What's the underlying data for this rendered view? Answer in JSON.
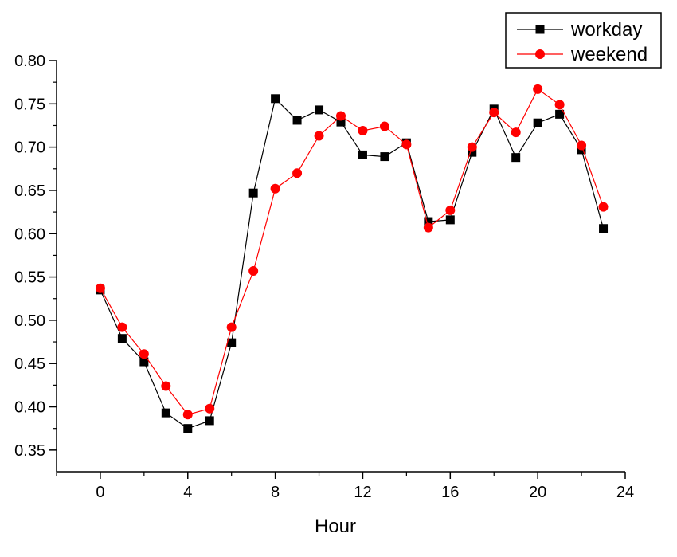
{
  "chart_data": {
    "type": "line",
    "title": "",
    "xlabel": "Hour",
    "ylabel": "",
    "xlim": [
      -2,
      24
    ],
    "ylim": [
      0.325,
      0.8
    ],
    "xticks": [
      0,
      4,
      8,
      12,
      16,
      20,
      24
    ],
    "xtick_labels": [
      "0",
      "4",
      "8",
      "12",
      "16",
      "20",
      "24"
    ],
    "xminor": [
      -2,
      2,
      6,
      10,
      14,
      18,
      22
    ],
    "yticks": [
      0.35,
      0.4,
      0.45,
      0.5,
      0.55,
      0.6,
      0.65,
      0.7,
      0.75,
      0.8
    ],
    "ytick_labels": [
      "0.35",
      "0.40",
      "0.45",
      "0.50",
      "0.55",
      "0.60",
      "0.65",
      "0.70",
      "0.75",
      "0.80"
    ],
    "yminor": [
      0.375,
      0.425,
      0.475,
      0.525,
      0.575,
      0.625,
      0.675,
      0.725,
      0.775
    ],
    "grid": false,
    "legend_position": "top-right",
    "x": [
      0,
      1,
      2,
      3,
      4,
      5,
      6,
      7,
      8,
      9,
      10,
      11,
      12,
      13,
      14,
      15,
      16,
      17,
      18,
      19,
      20,
      21,
      22,
      23
    ],
    "series": [
      {
        "name": "workday",
        "color": "#000000",
        "marker": "square",
        "values": [
          0.535,
          0.479,
          0.452,
          0.393,
          0.375,
          0.384,
          0.474,
          0.647,
          0.756,
          0.731,
          0.743,
          0.729,
          0.691,
          0.689,
          0.705,
          0.614,
          0.616,
          0.694,
          0.744,
          0.688,
          0.728,
          0.738,
          0.697,
          0.606
        ]
      },
      {
        "name": "weekend",
        "color": "#ff0000",
        "marker": "circle",
        "values": [
          0.537,
          0.492,
          0.461,
          0.424,
          0.391,
          0.398,
          0.492,
          0.557,
          0.652,
          0.67,
          0.713,
          0.736,
          0.719,
          0.724,
          0.703,
          0.607,
          0.627,
          0.7,
          0.74,
          0.717,
          0.767,
          0.749,
          0.702,
          0.631
        ]
      }
    ]
  }
}
